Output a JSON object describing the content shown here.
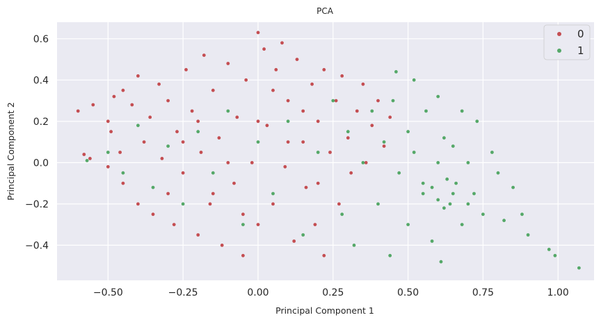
{
  "chart_data": {
    "type": "scatter",
    "title": "PCA",
    "xlabel": "Principal Component 1",
    "ylabel": "Principal Component 2",
    "xlim": [
      -0.67,
      1.12
    ],
    "ylim": [
      -0.57,
      0.68
    ],
    "xticks": [
      -0.5,
      -0.25,
      0.0,
      0.25,
      0.5,
      0.75,
      1.0
    ],
    "xtick_labels": [
      "−0.50",
      "−0.25",
      "0.00",
      "0.25",
      "0.50",
      "0.75",
      "1.00"
    ],
    "yticks": [
      -0.4,
      -0.2,
      0.0,
      0.2,
      0.4,
      0.6
    ],
    "ytick_labels": [
      "−0.4",
      "−0.2",
      "0.0",
      "0.2",
      "0.4",
      "0.6"
    ],
    "grid": true,
    "legend_position": "top-right",
    "series": [
      {
        "name": "0",
        "color": "#c44e52",
        "points": [
          [
            -0.6,
            0.25
          ],
          [
            -0.58,
            0.04
          ],
          [
            -0.56,
            0.02
          ],
          [
            -0.55,
            0.28
          ],
          [
            -0.5,
            0.2
          ],
          [
            -0.5,
            -0.02
          ],
          [
            -0.49,
            0.15
          ],
          [
            -0.48,
            0.32
          ],
          [
            -0.46,
            0.05
          ],
          [
            -0.45,
            -0.1
          ],
          [
            -0.45,
            0.35
          ],
          [
            -0.42,
            0.28
          ],
          [
            -0.4,
            0.42
          ],
          [
            -0.4,
            -0.2
          ],
          [
            -0.38,
            0.1
          ],
          [
            -0.36,
            0.22
          ],
          [
            -0.35,
            -0.25
          ],
          [
            -0.33,
            0.38
          ],
          [
            -0.32,
            0.02
          ],
          [
            -0.3,
            0.3
          ],
          [
            -0.3,
            -0.15
          ],
          [
            -0.28,
            -0.3
          ],
          [
            -0.27,
            0.15
          ],
          [
            -0.25,
            -0.05
          ],
          [
            -0.24,
            0.45
          ],
          [
            -0.22,
            0.25
          ],
          [
            -0.2,
            -0.35
          ],
          [
            -0.19,
            0.05
          ],
          [
            -0.18,
            0.52
          ],
          [
            -0.16,
            -0.2
          ],
          [
            -0.15,
            0.35
          ],
          [
            -0.13,
            0.12
          ],
          [
            -0.12,
            -0.4
          ],
          [
            -0.1,
            0.48
          ],
          [
            -0.08,
            -0.1
          ],
          [
            -0.07,
            0.22
          ],
          [
            -0.05,
            -0.45
          ],
          [
            -0.04,
            0.4
          ],
          [
            -0.02,
            0.0
          ],
          [
            0.0,
            0.63
          ],
          [
            0.0,
            -0.3
          ],
          [
            0.02,
            0.55
          ],
          [
            0.03,
            0.18
          ],
          [
            0.05,
            -0.2
          ],
          [
            0.06,
            0.45
          ],
          [
            0.08,
            0.58
          ],
          [
            0.09,
            -0.02
          ],
          [
            0.1,
            0.3
          ],
          [
            0.12,
            -0.38
          ],
          [
            0.13,
            0.5
          ],
          [
            0.15,
            0.1
          ],
          [
            0.16,
            -0.12
          ],
          [
            0.18,
            0.38
          ],
          [
            0.19,
            -0.3
          ],
          [
            0.2,
            0.2
          ],
          [
            0.22,
            0.45
          ],
          [
            0.22,
            -0.45
          ],
          [
            0.24,
            0.05
          ],
          [
            0.26,
            0.3
          ],
          [
            0.27,
            -0.2
          ],
          [
            0.28,
            0.42
          ],
          [
            0.3,
            0.12
          ],
          [
            0.31,
            -0.05
          ],
          [
            0.33,
            0.25
          ],
          [
            0.35,
            0.38
          ],
          [
            0.36,
            0.0
          ],
          [
            0.38,
            0.18
          ],
          [
            0.4,
            0.3
          ],
          [
            0.42,
            0.08
          ],
          [
            0.44,
            0.22
          ],
          [
            -0.2,
            0.2
          ],
          [
            -0.1,
            0.0
          ],
          [
            0.0,
            0.2
          ],
          [
            0.1,
            0.1
          ],
          [
            -0.15,
            -0.15
          ],
          [
            0.05,
            0.35
          ],
          [
            -0.25,
            0.1
          ],
          [
            0.15,
            0.25
          ],
          [
            -0.05,
            -0.25
          ],
          [
            0.2,
            -0.1
          ]
        ]
      },
      {
        "name": "1",
        "color": "#55a868",
        "points": [
          [
            -0.57,
            0.01
          ],
          [
            -0.5,
            0.05
          ],
          [
            -0.45,
            -0.05
          ],
          [
            -0.4,
            0.18
          ],
          [
            -0.35,
            -0.12
          ],
          [
            -0.3,
            0.08
          ],
          [
            -0.25,
            -0.2
          ],
          [
            -0.2,
            0.15
          ],
          [
            -0.15,
            -0.05
          ],
          [
            -0.1,
            0.25
          ],
          [
            -0.05,
            -0.3
          ],
          [
            0.0,
            0.1
          ],
          [
            0.05,
            -0.15
          ],
          [
            0.1,
            0.2
          ],
          [
            0.15,
            -0.35
          ],
          [
            0.2,
            0.05
          ],
          [
            0.25,
            0.3
          ],
          [
            0.28,
            -0.25
          ],
          [
            0.3,
            0.15
          ],
          [
            0.32,
            -0.4
          ],
          [
            0.35,
            0.0
          ],
          [
            0.38,
            0.25
          ],
          [
            0.4,
            -0.2
          ],
          [
            0.42,
            0.1
          ],
          [
            0.44,
            -0.45
          ],
          [
            0.45,
            0.3
          ],
          [
            0.47,
            -0.05
          ],
          [
            0.5,
            0.15
          ],
          [
            0.5,
            -0.3
          ],
          [
            0.52,
            0.05
          ],
          [
            0.55,
            -0.15
          ],
          [
            0.56,
            0.25
          ],
          [
            0.58,
            -0.38
          ],
          [
            0.6,
            0.0
          ],
          [
            0.61,
            -0.48
          ],
          [
            0.62,
            0.12
          ],
          [
            0.64,
            -0.2
          ],
          [
            0.65,
            0.08
          ],
          [
            0.66,
            -0.1
          ],
          [
            0.68,
            -0.3
          ],
          [
            0.7,
            0.0
          ],
          [
            0.72,
            -0.15
          ],
          [
            0.75,
            -0.25
          ],
          [
            0.78,
            0.05
          ],
          [
            0.8,
            -0.05
          ],
          [
            0.82,
            -0.28
          ],
          [
            0.85,
            -0.12
          ],
          [
            0.88,
            -0.25
          ],
          [
            0.9,
            -0.35
          ],
          [
            0.97,
            -0.42
          ],
          [
            0.99,
            -0.45
          ],
          [
            1.07,
            -0.51
          ],
          [
            0.46,
            0.44
          ],
          [
            0.52,
            0.4
          ],
          [
            0.6,
            0.32
          ],
          [
            0.68,
            0.25
          ],
          [
            0.73,
            0.2
          ],
          [
            0.55,
            -0.1
          ],
          [
            0.6,
            -0.18
          ],
          [
            0.65,
            -0.15
          ],
          [
            0.58,
            -0.12
          ],
          [
            0.62,
            -0.22
          ],
          [
            0.7,
            -0.2
          ],
          [
            0.63,
            -0.08
          ]
        ]
      }
    ]
  }
}
